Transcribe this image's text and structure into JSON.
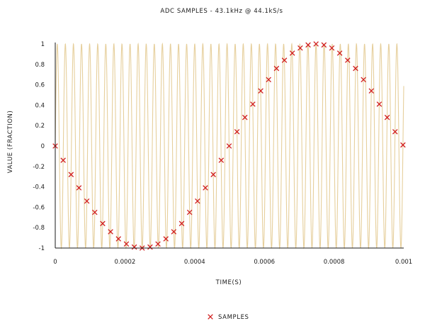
{
  "chart_data": {
    "type": "line",
    "title": "ADC SAMPLES - 43.1kHz @ 44.1kS/s",
    "xlabel": "TIME(S)",
    "ylabel": "VALUE (FRACTION)",
    "xlim": [
      0,
      0.001
    ],
    "ylim": [
      -1,
      1
    ],
    "x_ticks": [
      0,
      0.0002,
      0.0004,
      0.0006,
      0.0008,
      0.001
    ],
    "x_tick_labels": [
      "0",
      "0.0002",
      "0.0004",
      "0.0006",
      "0.0008",
      "0.001"
    ],
    "y_ticks": [
      -1,
      -0.8,
      -0.6,
      -0.4,
      -0.2,
      0,
      0.2,
      0.4,
      0.6,
      0.8,
      1
    ],
    "y_tick_labels": [
      "-1",
      "-0.8",
      "-0.6",
      "-0.4",
      "-0.2",
      "0",
      "0.2",
      "0.4",
      "0.6",
      "0.8",
      "1"
    ],
    "grid": false,
    "legend_position": "bottom-center",
    "colors": {
      "signal": "#e6cf9c",
      "samples": "#d11f1f",
      "axis": "#1a1a1a"
    },
    "series": [
      {
        "type": "line",
        "frequency_hz": 43100,
        "amplitude": 1,
        "x_range": [
          0,
          0.001
        ]
      },
      {
        "name": "SAMPLES",
        "type": "scatter",
        "marker": "x",
        "x": [
          0,
          2.27e-05,
          4.54e-05,
          6.8e-05,
          9.07e-05,
          0.0001134,
          0.0001361,
          0.0001587,
          0.0001814,
          0.0002041,
          0.0002268,
          0.0002494,
          0.0002721,
          0.0002948,
          0.0003175,
          0.0003401,
          0.0003628,
          0.0003855,
          0.0004082,
          0.0004308,
          0.0004535,
          0.0004762,
          0.0004989,
          0.0005215,
          0.0005442,
          0.0005669,
          0.0005896,
          0.0006122,
          0.0006349,
          0.0006576,
          0.0006803,
          0.0007029,
          0.0007256,
          0.0007483,
          0.000771,
          0.0007937,
          0.0008163,
          0.000839,
          0.0008617,
          0.0008844,
          0.000907,
          0.0009297,
          0.0009524,
          0.0009751,
          0.0009977
        ],
        "y": [
          0,
          -0.14,
          -0.28,
          -0.41,
          -0.54,
          -0.65,
          -0.76,
          -0.84,
          -0.91,
          -0.96,
          -0.99,
          -1,
          -0.99,
          -0.96,
          -0.91,
          -0.84,
          -0.76,
          -0.65,
          -0.54,
          -0.41,
          -0.28,
          -0.14,
          0,
          0.14,
          0.28,
          0.41,
          0.54,
          0.65,
          0.76,
          0.84,
          0.91,
          0.96,
          0.99,
          1,
          0.99,
          0.96,
          0.91,
          0.84,
          0.76,
          0.65,
          0.54,
          0.41,
          0.28,
          0.14,
          0.01
        ]
      }
    ]
  }
}
